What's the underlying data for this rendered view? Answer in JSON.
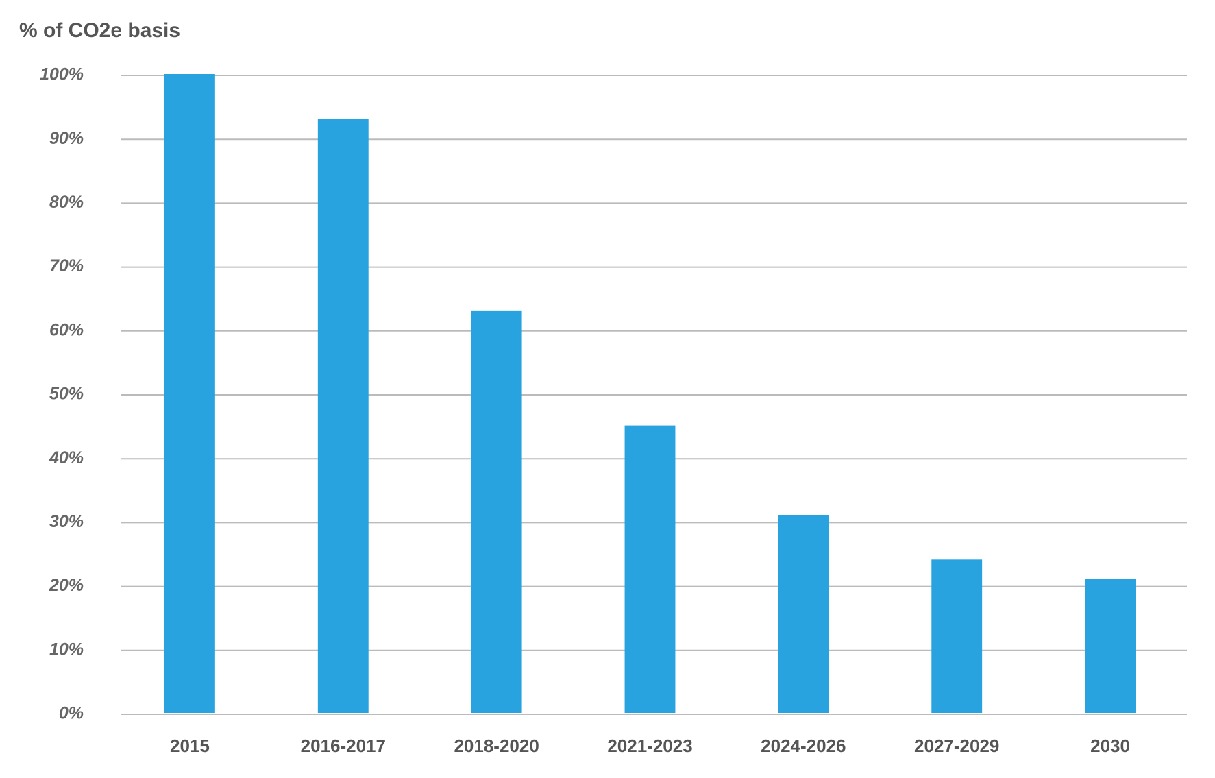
{
  "chart_data": {
    "type": "bar",
    "y_label": "% of CO2e basis",
    "categories": [
      "2015",
      "2016-2017",
      "2018-2020",
      "2021-2023",
      "2024-2026",
      "2027-2029",
      "2030"
    ],
    "values": [
      100,
      93,
      63,
      45,
      31,
      24,
      21
    ],
    "color": "#29a3e0",
    "ylim": [
      0,
      100
    ],
    "yticks": [
      {
        "value": 0,
        "label": "0%"
      },
      {
        "value": 10,
        "label": "10%"
      },
      {
        "value": 20,
        "label": "20%"
      },
      {
        "value": 30,
        "label": "30%"
      },
      {
        "value": 40,
        "label": "40%"
      },
      {
        "value": 50,
        "label": "50%"
      },
      {
        "value": 60,
        "label": "60%"
      },
      {
        "value": 70,
        "label": "70%"
      },
      {
        "value": 80,
        "label": "80%"
      },
      {
        "value": 90,
        "label": "90%"
      },
      {
        "value": 100,
        "label": "100%"
      }
    ],
    "grid": true
  }
}
